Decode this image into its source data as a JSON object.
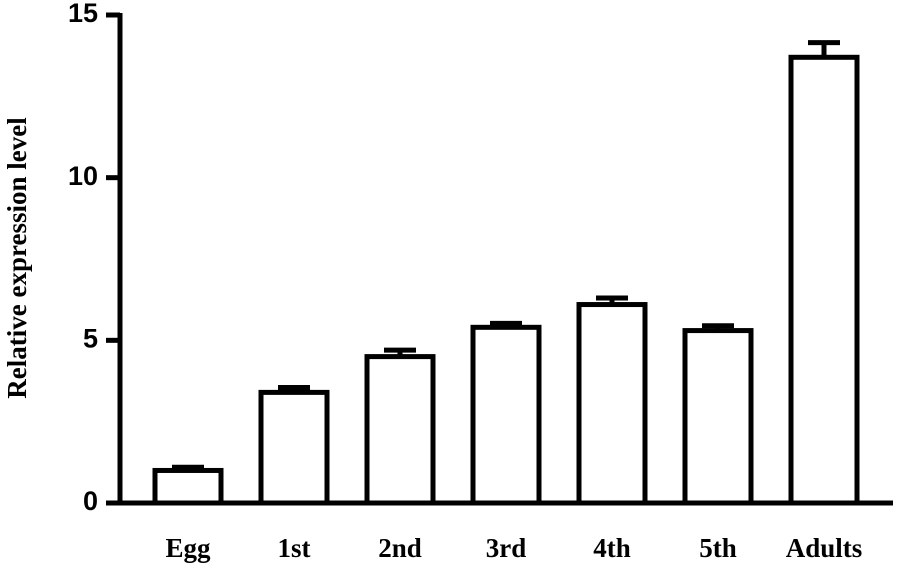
{
  "chart_data": {
    "type": "bar",
    "y_label": "Relative expression level",
    "categories": [
      "Egg",
      "1st",
      "2nd",
      "3rd",
      "4th",
      "5th",
      "Adults"
    ],
    "values": [
      1.0,
      3.4,
      4.5,
      5.4,
      6.1,
      5.3,
      13.7
    ],
    "errors": [
      0.1,
      0.15,
      0.2,
      0.12,
      0.2,
      0.15,
      0.45
    ],
    "color": "#ffffff",
    "ylim": [
      0,
      15
    ],
    "yticks": [
      0,
      5,
      10,
      15
    ],
    "grid": false
  }
}
